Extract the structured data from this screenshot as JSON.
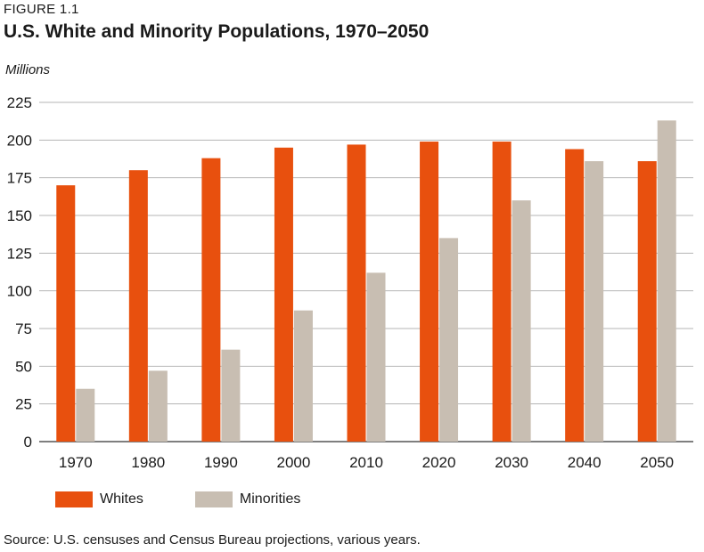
{
  "header": {
    "figure_label": "FIGURE 1.1",
    "title": "U.S. White and Minority Populations, 1970–2050"
  },
  "source_note": "Source: U.S. censuses and Census Bureau projections, various years.",
  "chart_data": {
    "type": "bar",
    "title": "U.S. White and Minority Populations, 1970–2050",
    "ylabel": "Millions",
    "xlabel": "",
    "ylim": [
      0,
      225
    ],
    "yticks": [
      0,
      25,
      50,
      75,
      100,
      125,
      150,
      175,
      200,
      225
    ],
    "grid": true,
    "legend_position": "bottom-left",
    "categories": [
      "1970",
      "1980",
      "1990",
      "2000",
      "2010",
      "2020",
      "2030",
      "2040",
      "2050"
    ],
    "series": [
      {
        "name": "Whites",
        "color": "#e8500e",
        "values": [
          170,
          180,
          188,
          195,
          197,
          199,
          199,
          194,
          186
        ]
      },
      {
        "name": "Minorities",
        "color": "#c8beb2",
        "values": [
          35,
          47,
          61,
          87,
          112,
          135,
          160,
          186,
          213
        ]
      }
    ]
  }
}
